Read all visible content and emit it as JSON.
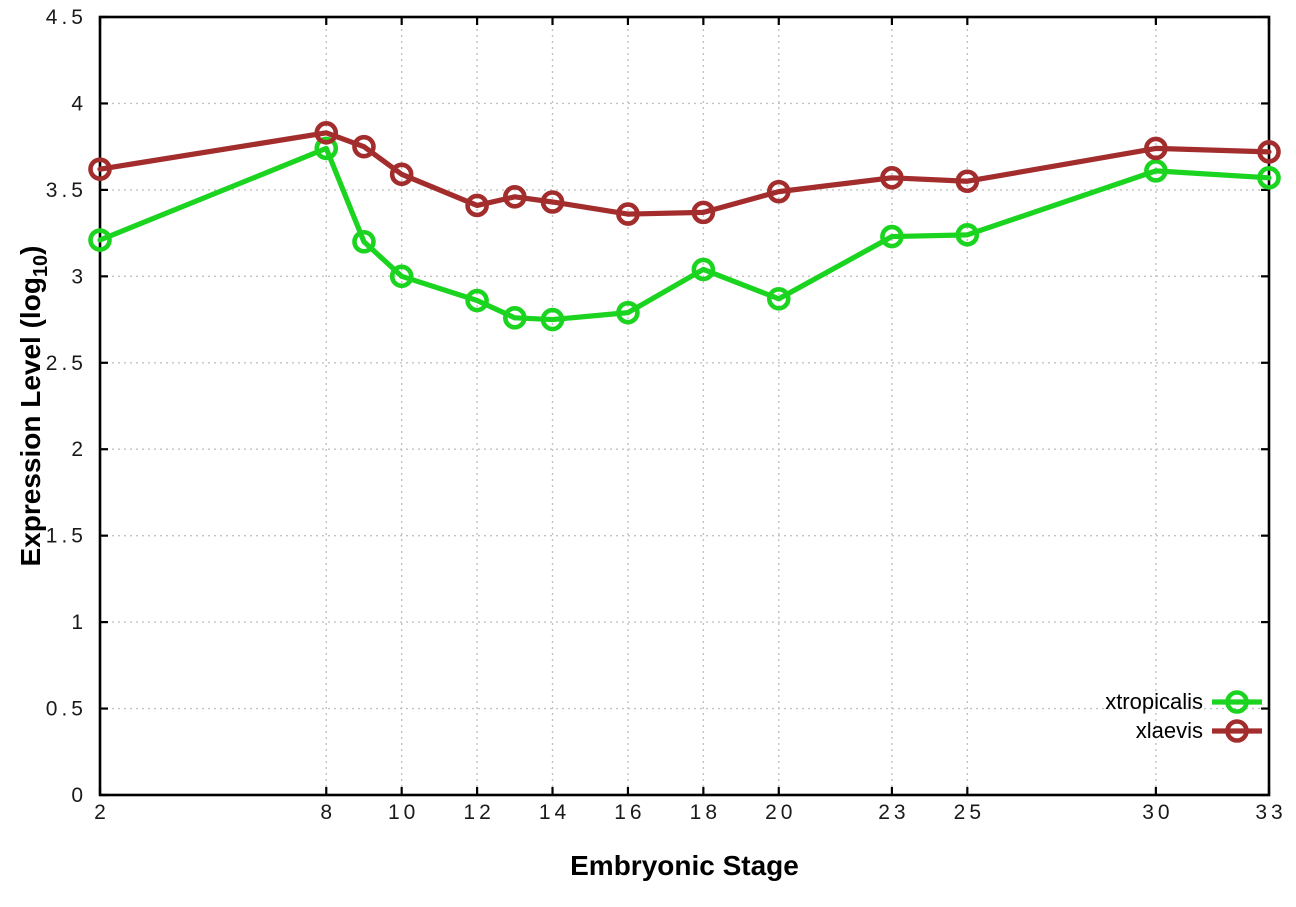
{
  "chart_data": {
    "type": "line",
    "title": "",
    "xlabel": "Embryonic Stage",
    "ylabel": "Expression Level (log10)",
    "ylabel_parts": {
      "main": "Expression Level (log",
      "sub": "10",
      "end": ")"
    },
    "xlim": [
      2,
      33
    ],
    "ylim": [
      0,
      4.5
    ],
    "grid": true,
    "legend_position": "bottom-right-inside",
    "x_ticks": [
      2,
      8,
      10,
      12,
      14,
      16,
      18,
      20,
      23,
      25,
      30,
      33
    ],
    "x_tick_labels": [
      "2",
      "8",
      "10",
      "12",
      "14",
      "16",
      "18",
      "20",
      "23",
      "25",
      "30",
      "33"
    ],
    "y_ticks": [
      0,
      0.5,
      1,
      1.5,
      2,
      2.5,
      3,
      3.5,
      4,
      4.5
    ],
    "y_tick_labels": [
      "0",
      "0.5",
      "1",
      "1.5",
      "2",
      "2.5",
      "3",
      "3.5",
      "4",
      "4.5"
    ],
    "x": [
      2,
      8,
      9,
      10,
      12,
      13,
      14,
      16,
      18,
      20,
      23,
      25,
      30,
      33
    ],
    "series": [
      {
        "name": "xtropicalis",
        "color": "#1bd41f",
        "values": [
          3.21,
          3.74,
          3.2,
          3.0,
          2.86,
          2.76,
          2.75,
          2.79,
          3.04,
          2.87,
          3.23,
          3.24,
          3.61,
          3.57
        ]
      },
      {
        "name": "xlaevis",
        "color": "#a32c2c",
        "values": [
          3.62,
          3.83,
          3.75,
          3.59,
          3.41,
          3.46,
          3.43,
          3.36,
          3.37,
          3.49,
          3.57,
          3.55,
          3.74,
          3.72
        ]
      }
    ],
    "colors": {
      "axis": "#000000",
      "grid": "#c2c2c2",
      "tick_label": "#1a1a1a",
      "background": "#ffffff"
    }
  }
}
